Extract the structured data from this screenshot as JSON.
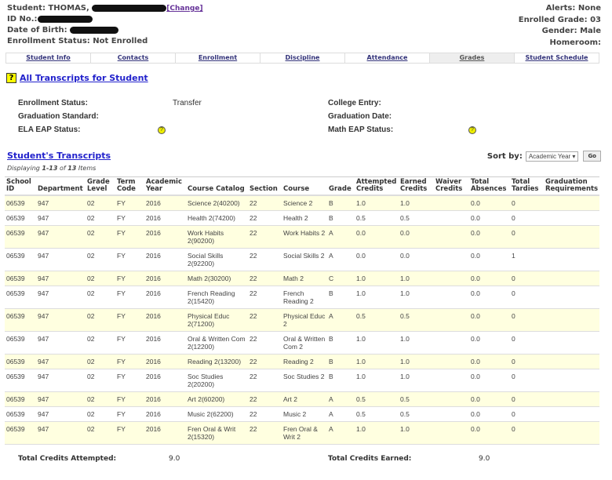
{
  "header": {
    "student_label": "Student: THOMAS,",
    "change": "[Change]",
    "id_label": "ID No.:",
    "dob_label": "Date of Birth:",
    "enrollment": "Enrollment Status: Not Enrolled",
    "alerts": "Alerts: None",
    "grade": "Enrolled Grade: 03",
    "gender": "Gender: Male",
    "homeroom": "Homeroom:"
  },
  "tabs": [
    "Student Info",
    "Contacts",
    "Enrollment",
    "Discipline",
    "Attendance",
    "Grades",
    "Student Schedule"
  ],
  "active_tab": "Grades",
  "page_title": "All Transcripts for Student",
  "info": {
    "enroll_label": "Enrollment Status:",
    "enroll_value": "Transfer",
    "grad_std_label": "Graduation Standard:",
    "ela_label": "ELA EAP Status:",
    "college_label": "College Entry:",
    "grad_date_label": "Graduation Date:",
    "math_label": "Math EAP Status:",
    "help": "?"
  },
  "transcripts": {
    "title": "Student's Transcripts",
    "displaying": [
      "Displaying ",
      "1-13",
      " of ",
      "13",
      " Items"
    ],
    "sort_label": "Sort by:",
    "sort_value": "Academic Year ▾",
    "go": "Go",
    "columns": [
      "School ID",
      "Department",
      "Grade Level",
      "Term Code",
      "Academic Year",
      "Course Catalog",
      "Section",
      "Course",
      "Grade",
      "Attempted Credits",
      "Earned Credits",
      "Waiver Credits",
      "Total Absences",
      "Total Tardies",
      "Graduation Requirements"
    ],
    "rows": [
      [
        "06539",
        "947",
        "02",
        "FY",
        "2016",
        "Science 2(40200)",
        "22",
        "Science 2",
        "B",
        "1.0",
        "1.0",
        "",
        "0.0",
        "0",
        ""
      ],
      [
        "06539",
        "947",
        "02",
        "FY",
        "2016",
        "Health 2(74200)",
        "22",
        "Health 2",
        "B",
        "0.5",
        "0.5",
        "",
        "0.0",
        "0",
        ""
      ],
      [
        "06539",
        "947",
        "02",
        "FY",
        "2016",
        "Work Habits 2(90200)",
        "22",
        "Work Habits 2",
        "A",
        "0.0",
        "0.0",
        "",
        "0.0",
        "0",
        ""
      ],
      [
        "06539",
        "947",
        "02",
        "FY",
        "2016",
        "Social Skills 2(92200)",
        "22",
        "Social Skills 2",
        "A",
        "0.0",
        "0.0",
        "",
        "0.0",
        "1",
        ""
      ],
      [
        "06539",
        "947",
        "02",
        "FY",
        "2016",
        "Math 2(30200)",
        "22",
        "Math 2",
        "C",
        "1.0",
        "1.0",
        "",
        "0.0",
        "0",
        ""
      ],
      [
        "06539",
        "947",
        "02",
        "FY",
        "2016",
        "French Reading 2(15420)",
        "22",
        "French Reading 2",
        "B",
        "1.0",
        "1.0",
        "",
        "0.0",
        "0",
        ""
      ],
      [
        "06539",
        "947",
        "02",
        "FY",
        "2016",
        "Physical Educ 2(71200)",
        "22",
        "Physical Educ 2",
        "A",
        "0.5",
        "0.5",
        "",
        "0.0",
        "0",
        ""
      ],
      [
        "06539",
        "947",
        "02",
        "FY",
        "2016",
        "Oral & Written Com 2(12200)",
        "22",
        "Oral & Written Com 2",
        "B",
        "1.0",
        "1.0",
        "",
        "0.0",
        "0",
        ""
      ],
      [
        "06539",
        "947",
        "02",
        "FY",
        "2016",
        "Reading 2(13200)",
        "22",
        "Reading 2",
        "B",
        "1.0",
        "1.0",
        "",
        "0.0",
        "0",
        ""
      ],
      [
        "06539",
        "947",
        "02",
        "FY",
        "2016",
        "Soc Studies 2(20200)",
        "22",
        "Soc Studies 2",
        "B",
        "1.0",
        "1.0",
        "",
        "0.0",
        "0",
        ""
      ],
      [
        "06539",
        "947",
        "02",
        "FY",
        "2016",
        "Art 2(60200)",
        "22",
        "Art 2",
        "A",
        "0.5",
        "0.5",
        "",
        "0.0",
        "0",
        ""
      ],
      [
        "06539",
        "947",
        "02",
        "FY",
        "2016",
        "Music 2(62200)",
        "22",
        "Music 2",
        "A",
        "0.5",
        "0.5",
        "",
        "0.0",
        "0",
        ""
      ],
      [
        "06539",
        "947",
        "02",
        "FY",
        "2016",
        "Fren Oral & Writ 2(15320)",
        "22",
        "Fren Oral & Writ 2",
        "A",
        "1.0",
        "1.0",
        "",
        "0.0",
        "0",
        ""
      ]
    ]
  },
  "totals": {
    "attempted_label": "Total Credits Attempted:",
    "attempted": "9.0",
    "earned_label": "Total Credits Earned:",
    "earned": "9.0"
  },
  "colors": {
    "row_highlight": "#ffffe0",
    "link": "#2222cc",
    "help_icon": "#ffff00"
  }
}
